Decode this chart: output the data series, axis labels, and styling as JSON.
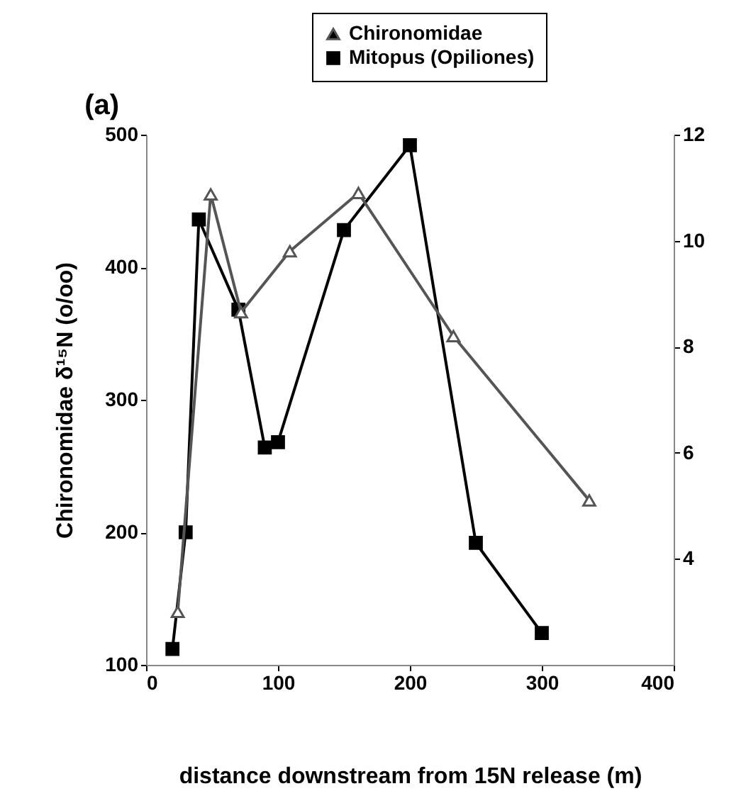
{
  "chart_data": {
    "type": "line",
    "title": "(a)",
    "xlabel": "distance downstream from 15N release (m)",
    "ylabel": "Chironomidae δ¹⁵N (o/oo)",
    "xlim": [
      0,
      400
    ],
    "xticks": [
      0,
      100,
      200,
      300,
      400
    ],
    "ylim": [
      100,
      500
    ],
    "yticks": [
      100,
      200,
      300,
      400,
      500
    ],
    "y2lim": [
      2,
      12
    ],
    "y2ticks": [
      4,
      6,
      8,
      10,
      12
    ],
    "legend": "top right",
    "series": [
      {
        "name": "Chironomidae",
        "color": "#555555",
        "marker": "triangle",
        "x": [
          24,
          49,
          72,
          109,
          161,
          233,
          336
        ],
        "values": [
          140,
          455,
          366,
          412,
          456,
          348,
          224
        ]
      },
      {
        "name": "Mitopus (Opiliones)",
        "color": "#000000",
        "marker": "square",
        "axis": "y2",
        "x": [
          20,
          30,
          40,
          70,
          90,
          100,
          150,
          200,
          250,
          300
        ],
        "values": [
          2.3,
          4.5,
          10.4,
          8.7,
          6.1,
          6.2,
          10.2,
          11.8,
          4.3,
          2.6
        ]
      }
    ]
  }
}
